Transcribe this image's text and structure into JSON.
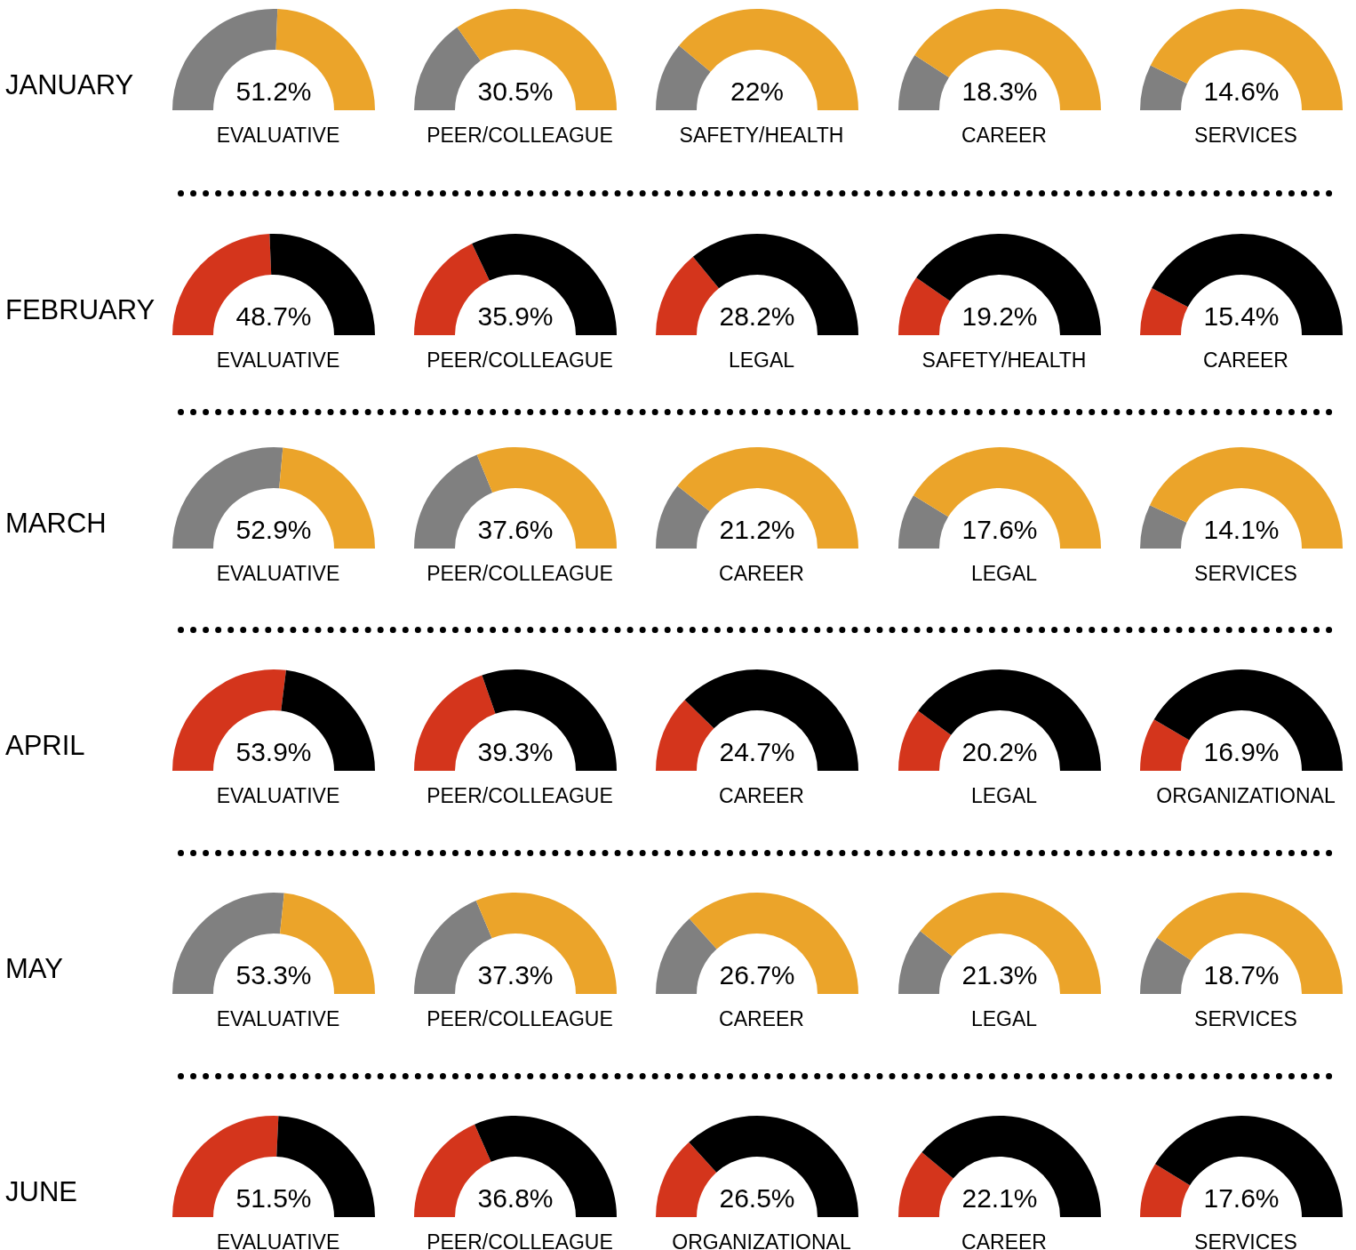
{
  "chart_data": [
    {
      "type": "donut",
      "title": "EVALUATIVE",
      "subtitle": "51.2%",
      "annotations": [
        "JANUARY"
      ],
      "categories": [
        null,
        null
      ],
      "values": [
        51.2,
        48.8
      ],
      "colors": [
        "#808080",
        "#eba42a"
      ]
    },
    {
      "type": "donut",
      "title": "PEER/COLLEAGUE",
      "subtitle": "30.5%",
      "categories": [
        null,
        null
      ],
      "values": [
        30.5,
        69.5
      ],
      "colors": [
        "#808080",
        "#eba42a"
      ]
    },
    {
      "type": "donut",
      "title": "SAFETY/HEALTH",
      "subtitle": "22%",
      "categories": [
        null,
        null
      ],
      "values": [
        22,
        78
      ],
      "colors": [
        "#808080",
        "#eba42a"
      ]
    },
    {
      "type": "donut",
      "title": "CAREER",
      "subtitle": "18.3%",
      "categories": [
        null,
        null
      ],
      "values": [
        18.3,
        81.7
      ],
      "colors": [
        "#808080",
        "#eba42a"
      ]
    },
    {
      "type": "donut",
      "title": "SERVICES",
      "subtitle": "14.6%",
      "categories": [
        null,
        null
      ],
      "values": [
        14.6,
        85.4
      ],
      "colors": [
        "#808080",
        "#eba42a"
      ]
    },
    {
      "type": "donut",
      "title": "EVALUATIVE",
      "subtitle": "48.7%",
      "annotations": [
        "FEBRUARY"
      ],
      "categories": [
        null,
        null
      ],
      "values": [
        48.7,
        51.3
      ],
      "colors": [
        "#d4351c",
        "#000000"
      ]
    },
    {
      "type": "donut",
      "title": "PEER/COLLEAGUE",
      "subtitle": "35.9%",
      "categories": [
        null,
        null
      ],
      "values": [
        35.9,
        64.1
      ],
      "colors": [
        "#d4351c",
        "#000000"
      ]
    },
    {
      "type": "donut",
      "title": "LEGAL",
      "subtitle": "28.2%",
      "categories": [
        null,
        null
      ],
      "values": [
        28.2,
        71.8
      ],
      "colors": [
        "#d4351c",
        "#000000"
      ]
    },
    {
      "type": "donut",
      "title": "SAFETY/HEALTH",
      "subtitle": "19.2%",
      "categories": [
        null,
        null
      ],
      "values": [
        19.2,
        80.8
      ],
      "colors": [
        "#d4351c",
        "#000000"
      ]
    },
    {
      "type": "donut",
      "title": "CAREER",
      "subtitle": "15.4%",
      "categories": [
        null,
        null
      ],
      "values": [
        15.4,
        84.6
      ],
      "colors": [
        "#d4351c",
        "#000000"
      ]
    },
    {
      "type": "donut",
      "title": "EVALUATIVE",
      "subtitle": "52.9%",
      "annotations": [
        "MARCH"
      ],
      "categories": [
        null,
        null
      ],
      "values": [
        52.9,
        47.1
      ],
      "colors": [
        "#808080",
        "#eba42a"
      ]
    },
    {
      "type": "donut",
      "title": "PEER/COLLEAGUE",
      "subtitle": "37.6%",
      "categories": [
        null,
        null
      ],
      "values": [
        37.6,
        62.4
      ],
      "colors": [
        "#808080",
        "#eba42a"
      ]
    },
    {
      "type": "donut",
      "title": "CAREER",
      "subtitle": "21.2%",
      "categories": [
        null,
        null
      ],
      "values": [
        21.2,
        78.8
      ],
      "colors": [
        "#808080",
        "#eba42a"
      ]
    },
    {
      "type": "donut",
      "title": "LEGAL",
      "subtitle": "17.6%",
      "categories": [
        null,
        null
      ],
      "values": [
        17.6,
        82.4
      ],
      "colors": [
        "#808080",
        "#eba42a"
      ]
    },
    {
      "type": "donut",
      "title": "SERVICES",
      "subtitle": "14.1%",
      "categories": [
        null,
        null
      ],
      "values": [
        14.1,
        85.9
      ],
      "colors": [
        "#808080",
        "#eba42a"
      ]
    },
    {
      "type": "donut",
      "title": "EVALUATIVE",
      "subtitle": "53.9%",
      "annotations": [
        "APRIL"
      ],
      "categories": [
        null,
        null
      ],
      "values": [
        53.9,
        46.1
      ],
      "colors": [
        "#d4351c",
        "#000000"
      ]
    },
    {
      "type": "donut",
      "title": "PEER/COLLEAGUE",
      "subtitle": "39.3%",
      "categories": [
        null,
        null
      ],
      "values": [
        39.3,
        60.7
      ],
      "colors": [
        "#d4351c",
        "#000000"
      ]
    },
    {
      "type": "donut",
      "title": "CAREER",
      "subtitle": "24.7%",
      "categories": [
        null,
        null
      ],
      "values": [
        24.7,
        75.3
      ],
      "colors": [
        "#d4351c",
        "#000000"
      ]
    },
    {
      "type": "donut",
      "title": "LEGAL",
      "subtitle": "20.2%",
      "categories": [
        null,
        null
      ],
      "values": [
        20.2,
        79.8
      ],
      "colors": [
        "#d4351c",
        "#000000"
      ]
    },
    {
      "type": "donut",
      "title": "ORGANIZATIONAL",
      "subtitle": "16.9%",
      "categories": [
        null,
        null
      ],
      "values": [
        16.9,
        83.1
      ],
      "colors": [
        "#d4351c",
        "#000000"
      ]
    },
    {
      "type": "donut",
      "title": "EVALUATIVE",
      "subtitle": "53.3%",
      "annotations": [
        "MAY"
      ],
      "categories": [
        null,
        null
      ],
      "values": [
        53.3,
        46.7
      ],
      "colors": [
        "#808080",
        "#eba42a"
      ]
    },
    {
      "type": "donut",
      "title": "PEER/COLLEAGUE",
      "subtitle": "37.3%",
      "categories": [
        null,
        null
      ],
      "values": [
        37.3,
        62.7
      ],
      "colors": [
        "#808080",
        "#eba42a"
      ]
    },
    {
      "type": "donut",
      "title": "CAREER",
      "subtitle": "26.7%",
      "categories": [
        null,
        null
      ],
      "values": [
        26.7,
        73.3
      ],
      "colors": [
        "#808080",
        "#eba42a"
      ]
    },
    {
      "type": "donut",
      "title": "LEGAL",
      "subtitle": "21.3%",
      "categories": [
        null,
        null
      ],
      "values": [
        21.3,
        78.7
      ],
      "colors": [
        "#808080",
        "#eba42a"
      ]
    },
    {
      "type": "donut",
      "title": "SERVICES",
      "subtitle": "18.7%",
      "categories": [
        null,
        null
      ],
      "values": [
        18.7,
        81.3
      ],
      "colors": [
        "#808080",
        "#eba42a"
      ]
    },
    {
      "type": "donut",
      "title": "EVALUATIVE",
      "subtitle": "51.5%",
      "annotations": [
        "JUNE"
      ],
      "categories": [
        null,
        null
      ],
      "values": [
        51.5,
        48.5
      ],
      "colors": [
        "#d4351c",
        "#000000"
      ]
    },
    {
      "type": "donut",
      "title": "PEER/COLLEAGUE",
      "subtitle": "36.8%",
      "categories": [
        null,
        null
      ],
      "values": [
        36.8,
        63.2
      ],
      "colors": [
        "#d4351c",
        "#000000"
      ]
    },
    {
      "type": "donut",
      "title": "ORGANIZATIONAL",
      "subtitle": "26.5%",
      "categories": [
        null,
        null
      ],
      "values": [
        26.5,
        73.5
      ],
      "colors": [
        "#d4351c",
        "#000000"
      ]
    },
    {
      "type": "donut",
      "title": "CAREER",
      "subtitle": "22.1%",
      "categories": [
        null,
        null
      ],
      "values": [
        22.1,
        77.9
      ],
      "colors": [
        "#d4351c",
        "#000000"
      ]
    },
    {
      "type": "donut",
      "title": "SERVICES",
      "subtitle": "17.6%",
      "categories": [
        null,
        null
      ],
      "values": [
        17.6,
        82.4
      ],
      "colors": [
        "#d4351c",
        "#000000"
      ]
    }
  ]
}
